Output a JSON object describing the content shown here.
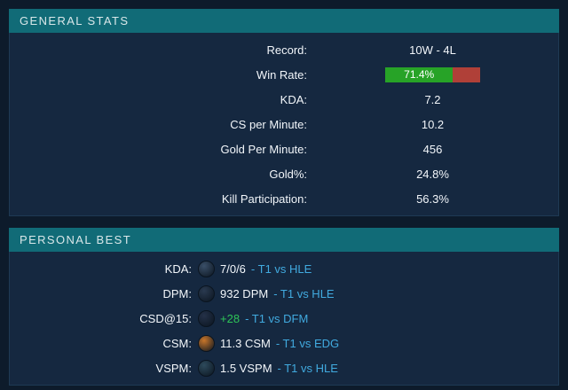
{
  "general_stats": {
    "title": "GENERAL STATS",
    "rows": [
      {
        "label": "Record:",
        "value": "10W - 4L"
      },
      {
        "label": "Win Rate:",
        "value": "71.4%",
        "winrate_percent": 71.4
      },
      {
        "label": "KDA:",
        "value": "7.2"
      },
      {
        "label": "CS per Minute:",
        "value": "10.2"
      },
      {
        "label": "Gold Per Minute:",
        "value": "456"
      },
      {
        "label": "Gold%:",
        "value": "24.8%"
      },
      {
        "label": "Kill Participation:",
        "value": "56.3%"
      }
    ]
  },
  "personal_best": {
    "title": "PERSONAL BEST",
    "rows": [
      {
        "label": "KDA:",
        "icon": "champion-portrait-icon",
        "icon_color": "#3a4f68",
        "value": "7/0/6",
        "value_style": "white",
        "match": "- T1 vs HLE"
      },
      {
        "label": "DPM:",
        "icon": "champion-portrait-icon",
        "icon_color": "#2a3a50",
        "value": "932 DPM",
        "value_style": "white",
        "match": "- T1 vs HLE"
      },
      {
        "label": "CSD@15:",
        "icon": "champion-portrait-icon",
        "icon_color": "#243148",
        "value": "+28",
        "value_style": "green",
        "match": "- T1 vs DFM"
      },
      {
        "label": "CSM:",
        "icon": "champion-portrait-icon",
        "icon_color": "#c8762a",
        "value": "11.3 CSM",
        "value_style": "white",
        "match": "- T1 vs EDG"
      },
      {
        "label": "VSPM:",
        "icon": "champion-portrait-icon",
        "icon_color": "#2d4a5c",
        "value": "1.5 VSPM",
        "value_style": "white",
        "match": "- T1 vs HLE"
      }
    ]
  },
  "colors": {
    "page_background": "#0d1b2b",
    "panel_header_teal": "#116b77",
    "panel_body_blue": "#152840",
    "winrate_green": "#27a327",
    "winrate_red": "#b04038",
    "best_value_green": "#2ec558",
    "match_link_cyan": "#41aadf"
  }
}
